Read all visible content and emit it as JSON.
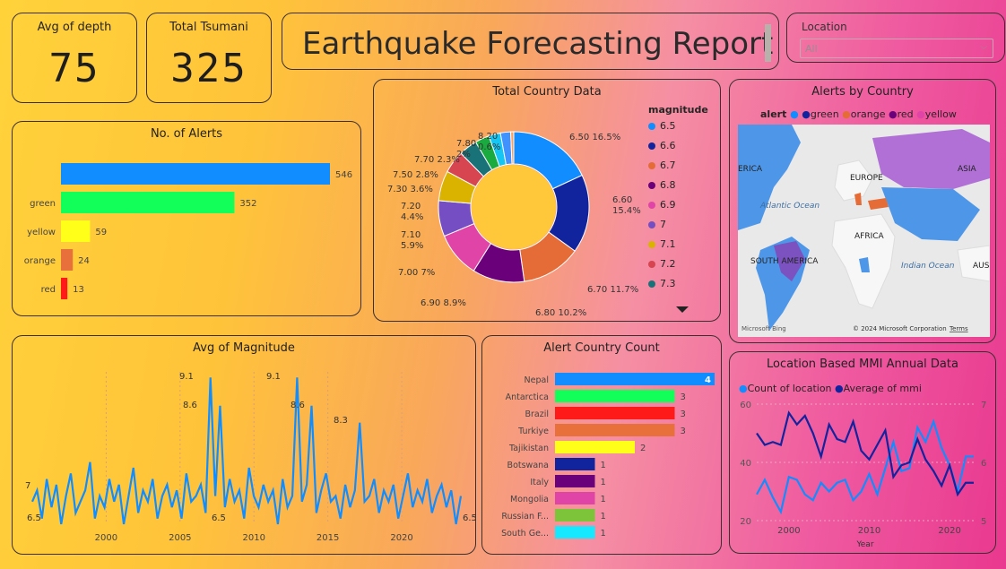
{
  "kpis": [
    {
      "label": "Avg of depth",
      "value": "75"
    },
    {
      "label": "Total Tsumani",
      "value": "325"
    }
  ],
  "report_title": "Earthquake Forecasting Report",
  "slicer": {
    "label": "Location",
    "value": "All"
  },
  "alerts_chart": {
    "title": "No. of Alerts",
    "type": "bar",
    "categories": [
      "",
      "green",
      "yellow",
      "orange",
      "red"
    ],
    "values": [
      546,
      352,
      59,
      24,
      13
    ],
    "colors": [
      "#118dff",
      "#12ff5a",
      "#ffff1a",
      "#e8703a",
      "#ff1a1a"
    ]
  },
  "donut": {
    "title": "Total Country Data",
    "legend_title": "magnitude",
    "legend": [
      {
        "label": "6.5",
        "color": "#118dff"
      },
      {
        "label": "6.6",
        "color": "#12239e"
      },
      {
        "label": "6.7",
        "color": "#e66c37"
      },
      {
        "label": "6.8",
        "color": "#6b007b"
      },
      {
        "label": "6.9",
        "color": "#e044a7"
      },
      {
        "label": "7",
        "color": "#744ec2"
      },
      {
        "label": "7.1",
        "color": "#d9b300"
      },
      {
        "label": "7.2",
        "color": "#d64550"
      },
      {
        "label": "7.3",
        "color": "#197278"
      }
    ],
    "callouts": [
      {
        "text": "6.50 16.5%"
      },
      {
        "line1": "6.60",
        "line2": "15.4%"
      },
      {
        "text": "6.70 11.7%"
      },
      {
        "text": "6.80 10.2%"
      },
      {
        "text": "6.90 8.9%"
      },
      {
        "text": "7.00 7%"
      },
      {
        "line1": "7.10",
        "line2": "5.9%"
      },
      {
        "line1": "7.20",
        "line2": "4.4%"
      },
      {
        "text": "7.30 3.6%"
      },
      {
        "text": "7.50 2.8%"
      },
      {
        "text": "7.70 2.3%"
      },
      {
        "line1": "7.80",
        "line2": "2%"
      },
      {
        "line1": "8.20",
        "line2": "0.6%"
      }
    ]
  },
  "chart_data": [
    {
      "type": "bar",
      "title": "No. of Alerts",
      "categories": [
        "",
        "green",
        "yellow",
        "orange",
        "red"
      ],
      "values": [
        546,
        352,
        59,
        24,
        13
      ]
    },
    {
      "type": "pie",
      "title": "Total Country Data",
      "legend_title": "magnitude",
      "categories": [
        "6.50",
        "6.60",
        "6.70",
        "6.80",
        "6.90",
        "7.00",
        "7.10",
        "7.20",
        "7.30",
        "7.50",
        "7.70",
        "7.80",
        "8.20"
      ],
      "values": [
        16.5,
        15.4,
        11.7,
        10.2,
        8.9,
        7.0,
        5.9,
        4.4,
        3.6,
        2.8,
        2.3,
        2.0,
        0.6
      ],
      "colors": [
        "#118dff",
        "#12239e",
        "#e66c37",
        "#6b007b",
        "#e044a7",
        "#744ec2",
        "#d9b300",
        "#d64550",
        "#197278",
        "#1aab40",
        "#15c6f4",
        "#4092ff",
        "#ffa058"
      ]
    },
    {
      "type": "line",
      "title": "Avg of Magnitude",
      "x_ticks": [
        "2000",
        "2005",
        "2010",
        "2015",
        "2020"
      ],
      "xlim": [
        1995,
        2024
      ],
      "ylim": [
        6.5,
        9.2
      ],
      "annotations": [
        "9.1",
        "8.6",
        "9.1",
        "8.6",
        "8.3",
        "7",
        "6.5",
        "6.5",
        "6.5"
      ],
      "series": [
        {
          "values": [
            6.9,
            7.1,
            6.6,
            7.3,
            6.8,
            7.2,
            6.5,
            7.0,
            7.4,
            6.7,
            6.9,
            7.1,
            7.6,
            6.6,
            7.0,
            6.8,
            7.3,
            6.9,
            7.2,
            6.5,
            7.0,
            7.5,
            6.7,
            7.1,
            6.9,
            7.3,
            6.6,
            7.0,
            7.2,
            6.8,
            7.1,
            6.6,
            7.4,
            6.9,
            7.0,
            7.2,
            6.7,
            9.1,
            7.0,
            8.6,
            6.8,
            7.3,
            6.9,
            7.1,
            6.6,
            7.5,
            7.0,
            6.8,
            7.2,
            6.9,
            7.1,
            6.5,
            7.3,
            6.8,
            7.0,
            9.1,
            6.9,
            7.2,
            8.6,
            6.7,
            7.1,
            7.4,
            6.9,
            7.0,
            6.6,
            7.2,
            6.8,
            7.1,
            8.3,
            6.9,
            7.0,
            7.3,
            6.7,
            7.1,
            6.9,
            7.2,
            6.6,
            7.0,
            7.4,
            6.8,
            7.1,
            6.9,
            7.3,
            6.7,
            7.0,
            7.2,
            6.8,
            7.1,
            6.5,
            7.0
          ]
        }
      ]
    },
    {
      "type": "bar",
      "title": "Alert Country Count",
      "categories": [
        "Nepal",
        "Antarctica",
        "Brazil",
        "Turkiye",
        "Tajikistan",
        "Botswana",
        "Italy",
        "Mongolia",
        "Russian F...",
        "South Ge..."
      ],
      "values": [
        4,
        3,
        3,
        3,
        2,
        1,
        1,
        1,
        1,
        1
      ]
    },
    {
      "type": "line",
      "title": "Location Based MMI Annual Data",
      "xlabel": "Year",
      "x_ticks": [
        "2000",
        "2010",
        "2020"
      ],
      "y_ticks_left": [
        "20",
        "40",
        "60"
      ],
      "y_ticks_right": [
        "5",
        "6",
        "7"
      ],
      "x": [
        1996,
        1997,
        1998,
        1999,
        2000,
        2001,
        2002,
        2003,
        2004,
        2005,
        2006,
        2007,
        2008,
        2009,
        2010,
        2011,
        2012,
        2013,
        2014,
        2015,
        2016,
        2017,
        2018,
        2019,
        2020,
        2021,
        2022,
        2023
      ],
      "series": [
        {
          "name": "Count of location",
          "axis": "left",
          "values": [
            29,
            34,
            28,
            23,
            35,
            34,
            29,
            27,
            33,
            30,
            33,
            34,
            27,
            30,
            36,
            29,
            38,
            47,
            37,
            38,
            52,
            47,
            54,
            45,
            39,
            30,
            42,
            42
          ]
        },
        {
          "name": "Average of mmi",
          "axis": "right",
          "values": [
            6.5,
            6.3,
            6.35,
            6.3,
            6.85,
            6.65,
            6.8,
            6.5,
            6.1,
            6.65,
            6.4,
            6.35,
            6.7,
            6.2,
            6.05,
            6.3,
            6.55,
            5.75,
            5.95,
            6.0,
            6.4,
            6.05,
            5.85,
            5.6,
            5.95,
            5.45,
            5.65,
            5.65
          ]
        }
      ]
    }
  ],
  "magnitude_chart": {
    "title": "Avg of Magnitude"
  },
  "map": {
    "title": "Alerts by Country",
    "legend_label": "alert",
    "legend": [
      {
        "label": "",
        "color": "#118dff"
      },
      {
        "label": "green",
        "color": "#12239e"
      },
      {
        "label": "orange",
        "color": "#e66c37"
      },
      {
        "label": "red",
        "color": "#6b007b"
      },
      {
        "label": "yellow",
        "color": "#e044a7"
      }
    ],
    "labels": [
      {
        "text": "ERICA"
      },
      {
        "text": "EUROPE"
      },
      {
        "text": "ASIA"
      },
      {
        "text": "Atlantic Ocean"
      },
      {
        "text": "AFRICA"
      },
      {
        "text": "SOUTH AMERICA"
      },
      {
        "text": "Indian Ocean"
      },
      {
        "text": "AUS"
      }
    ],
    "attribution": "© 2024 Microsoft Corporation",
    "terms": "Terms",
    "bing": "Microsoft Bing"
  },
  "country_chart": {
    "title": "Alert Country Count",
    "rows": [
      {
        "name": "Nepal",
        "value": "4",
        "color": "#118dff"
      },
      {
        "name": "Antarctica",
        "value": "3",
        "color": "#12ff5a"
      },
      {
        "name": "Brazil",
        "value": "3",
        "color": "#ff1a1a"
      },
      {
        "name": "Turkiye",
        "value": "3",
        "color": "#e8703a"
      },
      {
        "name": "Tajikistan",
        "value": "2",
        "color": "#ffff1a"
      },
      {
        "name": "Botswana",
        "value": "1",
        "color": "#12239e"
      },
      {
        "name": "Italy",
        "value": "1",
        "color": "#6b007b"
      },
      {
        "name": "Mongolia",
        "value": "1",
        "color": "#e044a7"
      },
      {
        "name": "Russian F...",
        "value": "1",
        "color": "#7dc43a"
      },
      {
        "name": "South Ge...",
        "value": "1",
        "color": "#15e8ff"
      }
    ]
  },
  "mmi_chart": {
    "title": "Location Based MMI Annual Data",
    "legend": [
      {
        "label": "Count of location",
        "color": "#118dff"
      },
      {
        "label": "Average of mmi",
        "color": "#12239e"
      }
    ],
    "xlabel": "Year"
  }
}
